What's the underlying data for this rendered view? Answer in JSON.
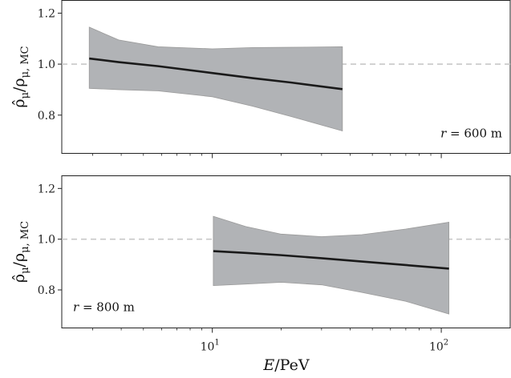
{
  "chart_data": {
    "type": "area",
    "xlabel": "E/PeV",
    "ylabel": "ρ̂μ/ρμ,MC",
    "x_scale": "log",
    "xlim": [
      2.2,
      200
    ],
    "x_ticks": [
      {
        "value": 10,
        "label_base": "10",
        "label_exp": "1"
      },
      {
        "value": 100,
        "label_base": "10",
        "label_exp": "2"
      }
    ],
    "reference_line": {
      "y": 1.0,
      "style": "dashed",
      "color": "#c8c8c8"
    },
    "colors": {
      "line": "#1a1a1a",
      "band": "#b1b3b6",
      "band_edge": "#9a9a9a"
    },
    "panels": [
      {
        "annotation": "r = 600 m",
        "annotation_position": "bottom-right",
        "ylim": [
          0.65,
          1.25
        ],
        "y_ticks": [
          0.8,
          1.0,
          1.2
        ],
        "y_tick_labels": [
          "0.8",
          "1.0",
          "1.2"
        ],
        "x": [
          2.9,
          3.9,
          5.8,
          10,
          15,
          22,
          37
        ],
        "y": [
          1.022,
          1.008,
          0.992,
          0.965,
          0.945,
          0.928,
          0.902
        ],
        "y_upper": [
          1.145,
          1.095,
          1.068,
          1.06,
          1.065,
          1.066,
          1.068
        ],
        "y_lower": [
          0.905,
          0.9,
          0.895,
          0.872,
          0.835,
          0.795,
          0.738
        ]
      },
      {
        "annotation": "r = 800 m",
        "annotation_position": "bottom-left",
        "ylim": [
          0.65,
          1.25
        ],
        "y_ticks": [
          0.8,
          1.0,
          1.2
        ],
        "y_tick_labels": [
          "0.8",
          "1.0",
          "1.2"
        ],
        "x": [
          10.1,
          14,
          20,
          30,
          45,
          70,
          108
        ],
        "y": [
          0.953,
          0.946,
          0.937,
          0.925,
          0.912,
          0.898,
          0.884
        ],
        "y_upper": [
          1.09,
          1.05,
          1.02,
          1.01,
          1.018,
          1.04,
          1.067
        ],
        "y_lower": [
          0.817,
          0.823,
          0.83,
          0.82,
          0.79,
          0.755,
          0.705
        ]
      }
    ]
  }
}
